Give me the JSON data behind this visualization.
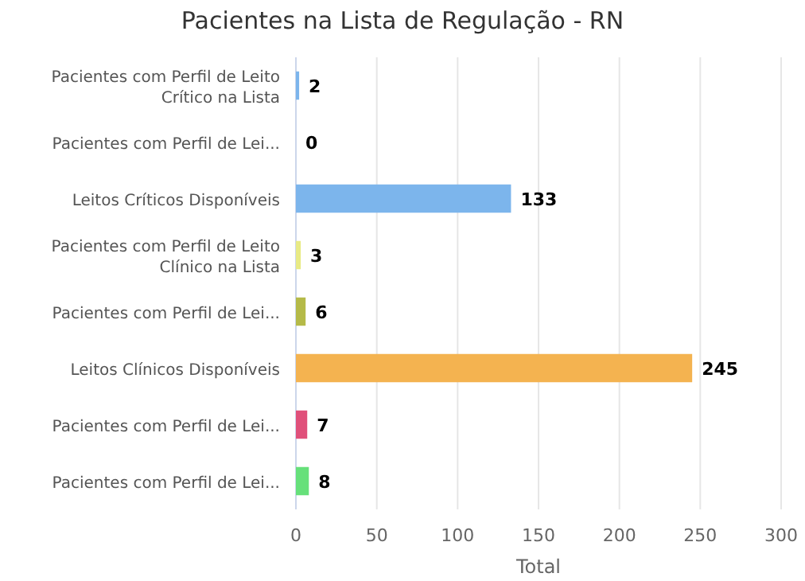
{
  "chart_data": {
    "type": "bar",
    "orientation": "horizontal",
    "title": "Pacientes na Lista de Regulação - RN",
    "xlabel": "Total",
    "categories": [
      "Pacientes com Perfil de Leito Crítico na Lista",
      "Pacientes com Perfil de Lei...",
      "Leitos Críticos Disponíveis",
      "Pacientes com Perfil de Leito Clínico na Lista",
      "Pacientes com Perfil de Lei...",
      "Leitos Clínicos Disponíveis",
      "Pacientes com Perfil de Lei...",
      "Pacientes com Perfil de Lei..."
    ],
    "values": [
      2,
      0,
      133,
      3,
      6,
      245,
      7,
      8
    ],
    "colors": [
      "#7cb5ec",
      "#7cb5ec",
      "#7cb5ec",
      "#e8ea85",
      "#b5ba48",
      "#f4b350",
      "#e0507a",
      "#66e07a"
    ],
    "xlim": [
      0,
      300
    ],
    "xticks": [
      0,
      50,
      100,
      150,
      200,
      250,
      300
    ],
    "grid": "x",
    "data_labels": true
  }
}
